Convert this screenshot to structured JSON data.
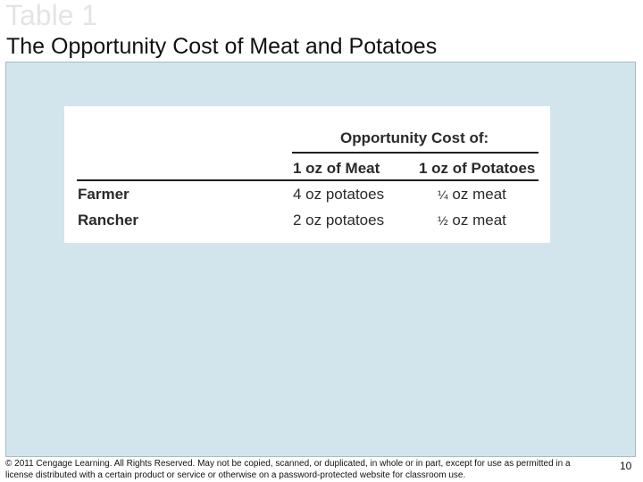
{
  "slide": {
    "label": "Table 1",
    "title": "The Opportunity Cost of Meat and Potatoes",
    "page_number": "10"
  },
  "table": {
    "group_header": "Opportunity Cost of:",
    "columns": [
      "1 oz of Meat",
      "1 oz of Potatoes"
    ],
    "rows": [
      {
        "label": "Farmer",
        "meat": "4 oz potatoes",
        "potatoes_frac": "¼",
        "potatoes_unit": "oz meat"
      },
      {
        "label": "Rancher",
        "meat": "2 oz potatoes",
        "potatoes_frac": "½",
        "potatoes_unit": "oz meat"
      }
    ]
  },
  "footer": {
    "copyright": "© 2011 Cengage Learning. All Rights Reserved. May not be copied, scanned, or duplicated, in whole or in part, except for use as permitted in a license distributed with a certain product or service or otherwise on a password-protected website for classroom use."
  }
}
